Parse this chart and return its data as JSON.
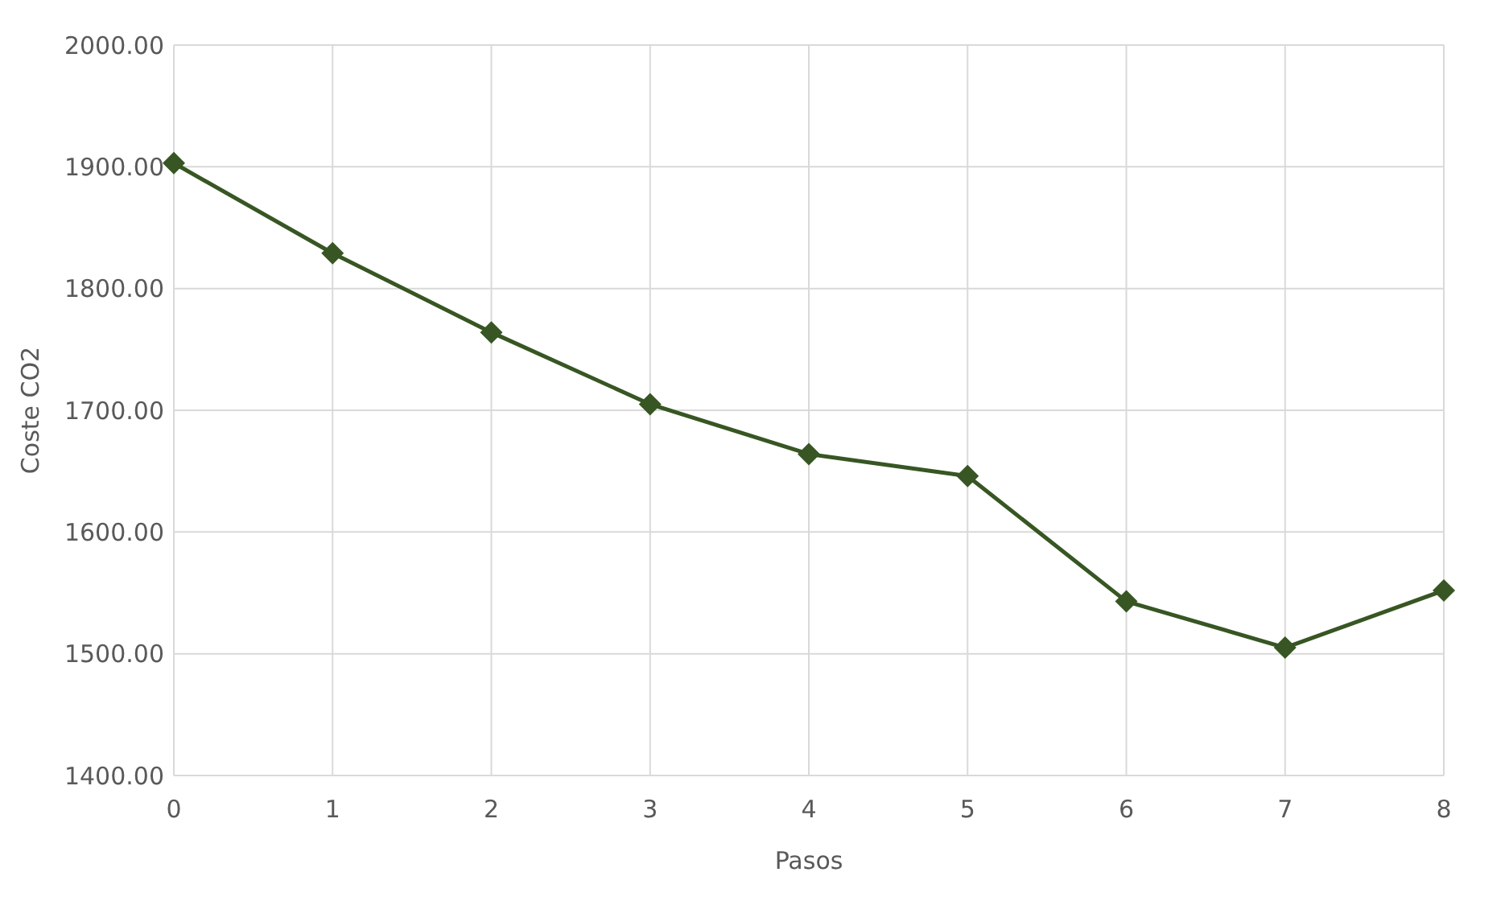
{
  "chart_data": {
    "type": "line",
    "xlabel": "Pasos",
    "ylabel": "Coste CO2",
    "x": [
      0,
      1,
      2,
      3,
      4,
      5,
      6,
      7,
      8
    ],
    "series": [
      {
        "color": "#375623",
        "values": [
          1903,
          1829,
          1764,
          1705,
          1664,
          1646,
          1543,
          1505,
          1552
        ]
      }
    ],
    "xlim": [
      0,
      8
    ],
    "xticks": [
      0,
      1,
      2,
      3,
      4,
      5,
      6,
      7,
      8
    ],
    "ylim": [
      1400,
      2000
    ],
    "yticks": [
      {
        "value": 1400,
        "label": "1400.00"
      },
      {
        "value": 1500,
        "label": "1500.00"
      },
      {
        "value": 1600,
        "label": "1600.00"
      },
      {
        "value": 1700,
        "label": "1700.00"
      },
      {
        "value": 1800,
        "label": "1800.00"
      },
      {
        "value": 1900,
        "label": "1900.00"
      },
      {
        "value": 2000,
        "label": "2000.00"
      }
    ],
    "grid": true,
    "marker": "diamond",
    "line_style": "solid"
  }
}
